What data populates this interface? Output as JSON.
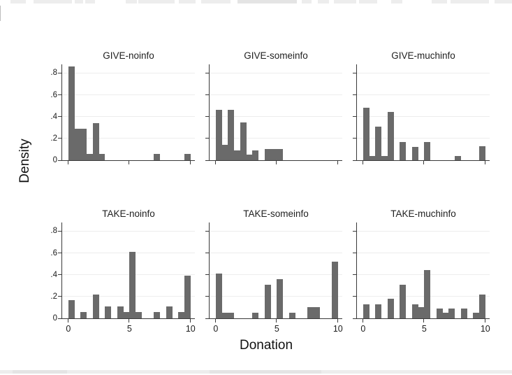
{
  "chart_data": {
    "type": "bar",
    "subtype": "histogram-small-multiples",
    "layout": "2 rows x 3 cols, shared axes",
    "xlabel": "Donation",
    "ylabel": "Density",
    "bin_width": 0.5,
    "xlim": [
      -0.5,
      10.3
    ],
    "ylim": [
      0,
      0.88
    ],
    "grid": "horizontal",
    "bar_color": "#6a6a6a",
    "x_ticks": {
      "values": [
        0,
        5,
        10
      ],
      "labels": [
        "0",
        "5",
        "10"
      ]
    },
    "y_ticks": {
      "values": [
        0,
        0.2,
        0.4,
        0.6,
        0.8
      ],
      "labels": [
        "0",
        ".2",
        ".4",
        ".6",
        ".8"
      ]
    },
    "panels": [
      {
        "title": "GIVE-noinfo",
        "row": 0,
        "col": 0,
        "bars": [
          {
            "x": 0,
            "h": 0.86
          },
          {
            "x": 0.5,
            "h": 0.29
          },
          {
            "x": 1,
            "h": 0.29
          },
          {
            "x": 1.5,
            "h": 0.06
          },
          {
            "x": 2,
            "h": 0.34
          },
          {
            "x": 2.5,
            "h": 0.06
          },
          {
            "x": 7,
            "h": 0.06
          },
          {
            "x": 9.5,
            "h": 0.06
          }
        ]
      },
      {
        "title": "GIVE-someinfo",
        "row": 0,
        "col": 1,
        "bars": [
          {
            "x": 0,
            "h": 0.46
          },
          {
            "x": 0.5,
            "h": 0.14
          },
          {
            "x": 1,
            "h": 0.46
          },
          {
            "x": 1.5,
            "h": 0.09
          },
          {
            "x": 2,
            "h": 0.35
          },
          {
            "x": 2.5,
            "h": 0.05
          },
          {
            "x": 3,
            "h": 0.09
          },
          {
            "x": 4,
            "h": 0.1
          },
          {
            "x": 4.5,
            "h": 0.1
          },
          {
            "x": 5,
            "h": 0.1
          }
        ]
      },
      {
        "title": "GIVE-muchinfo",
        "row": 0,
        "col": 2,
        "bars": [
          {
            "x": 0,
            "h": 0.48
          },
          {
            "x": 0.5,
            "h": 0.04
          },
          {
            "x": 1,
            "h": 0.31
          },
          {
            "x": 1.5,
            "h": 0.04
          },
          {
            "x": 2,
            "h": 0.44
          },
          {
            "x": 3,
            "h": 0.17
          },
          {
            "x": 4,
            "h": 0.12
          },
          {
            "x": 5,
            "h": 0.17
          },
          {
            "x": 7.5,
            "h": 0.04
          },
          {
            "x": 9.5,
            "h": 0.13
          }
        ]
      },
      {
        "title": "TAKE-noinfo",
        "row": 1,
        "col": 0,
        "bars": [
          {
            "x": 0,
            "h": 0.17
          },
          {
            "x": 1,
            "h": 0.06
          },
          {
            "x": 2,
            "h": 0.22
          },
          {
            "x": 3,
            "h": 0.11
          },
          {
            "x": 4,
            "h": 0.11
          },
          {
            "x": 4.5,
            "h": 0.06
          },
          {
            "x": 5,
            "h": 0.61
          },
          {
            "x": 5.5,
            "h": 0.06
          },
          {
            "x": 7,
            "h": 0.06
          },
          {
            "x": 8,
            "h": 0.11
          },
          {
            "x": 9,
            "h": 0.06
          },
          {
            "x": 9.5,
            "h": 0.39
          }
        ]
      },
      {
        "title": "TAKE-someinfo",
        "row": 1,
        "col": 1,
        "bars": [
          {
            "x": 0,
            "h": 0.41
          },
          {
            "x": 0.5,
            "h": 0.05
          },
          {
            "x": 1,
            "h": 0.05
          },
          {
            "x": 3,
            "h": 0.05
          },
          {
            "x": 4,
            "h": 0.31
          },
          {
            "x": 5,
            "h": 0.36
          },
          {
            "x": 6,
            "h": 0.05
          },
          {
            "x": 7.5,
            "h": 0.1
          },
          {
            "x": 8,
            "h": 0.1
          },
          {
            "x": 9.5,
            "h": 0.52
          }
        ]
      },
      {
        "title": "TAKE-muchinfo",
        "row": 1,
        "col": 2,
        "bars": [
          {
            "x": 0,
            "h": 0.13
          },
          {
            "x": 1,
            "h": 0.13
          },
          {
            "x": 2,
            "h": 0.18
          },
          {
            "x": 3,
            "h": 0.31
          },
          {
            "x": 4,
            "h": 0.13
          },
          {
            "x": 4.5,
            "h": 0.1
          },
          {
            "x": 5,
            "h": 0.44
          },
          {
            "x": 6,
            "h": 0.09
          },
          {
            "x": 6.5,
            "h": 0.05
          },
          {
            "x": 7,
            "h": 0.09
          },
          {
            "x": 8,
            "h": 0.09
          },
          {
            "x": 9,
            "h": 0.05
          },
          {
            "x": 9.5,
            "h": 0.22
          }
        ]
      }
    ]
  }
}
